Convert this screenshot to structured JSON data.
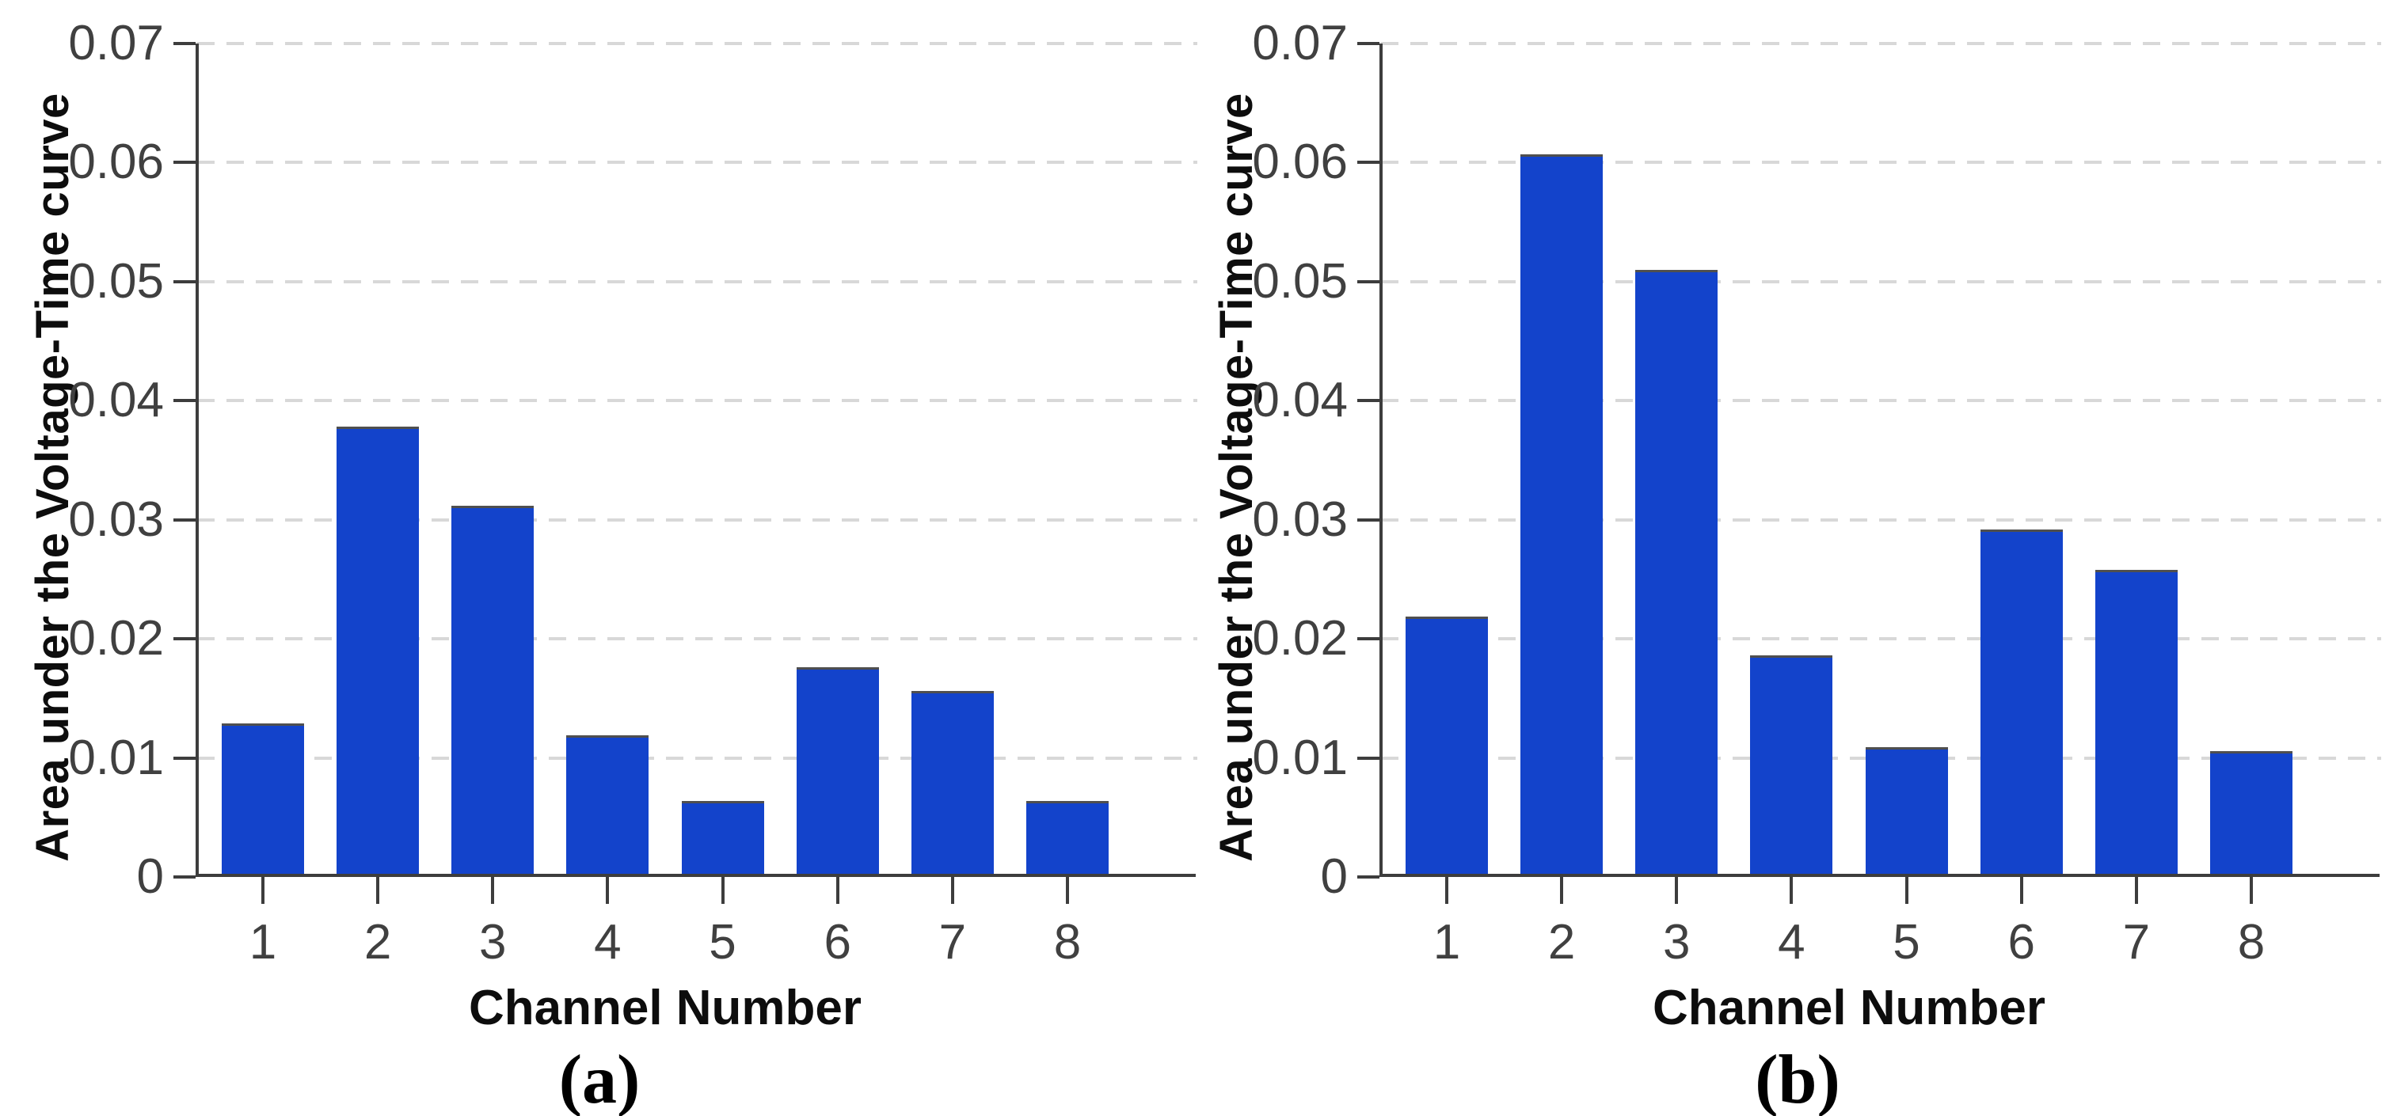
{
  "chart_data": [
    {
      "type": "bar",
      "panel_label": "(a)",
      "xlabel": "Channel Number",
      "ylabel": "Area under the Voltage-Time curve",
      "categories": [
        "1",
        "2",
        "3",
        "4",
        "5",
        "6",
        "7",
        "8"
      ],
      "values": [
        0.0127,
        0.0376,
        0.031,
        0.0117,
        0.0062,
        0.0174,
        0.0154,
        0.0062
      ],
      "ylim": [
        0,
        0.07
      ],
      "yticks": [
        0,
        0.01,
        0.02,
        0.03,
        0.04,
        0.05,
        0.06,
        0.07
      ],
      "ytick_labels": [
        "0",
        "0.01",
        "0.02",
        "0.03",
        "0.04",
        "0.05",
        "0.06",
        "0.07"
      ],
      "grid": "horizontal-dashed",
      "legend": "none"
    },
    {
      "type": "bar",
      "panel_label": "(b)",
      "xlabel": "Channel Number",
      "ylabel": "Area under the Voltage-Time curve",
      "categories": [
        "1",
        "2",
        "3",
        "4",
        "5",
        "6",
        "7",
        "8"
      ],
      "values": [
        0.0217,
        0.0605,
        0.0508,
        0.0184,
        0.0107,
        0.029,
        0.0256,
        0.0104
      ],
      "ylim": [
        0,
        0.07
      ],
      "yticks": [
        0,
        0.01,
        0.02,
        0.03,
        0.04,
        0.05,
        0.06,
        0.07
      ],
      "ytick_labels": [
        "0",
        "0.01",
        "0.02",
        "0.03",
        "0.04",
        "0.05",
        "0.06",
        "0.07"
      ],
      "grid": "horizontal-dashed",
      "legend": "none"
    }
  ],
  "style": {
    "bar_color": "#1343cb",
    "bar_edge_color": "#4f4f4f",
    "axis_color": "#3d3d3d",
    "grid_color": "#d8d8d8",
    "tick_label_color": "#404040",
    "label_color": "#0d0d0d",
    "background": "#ffffff"
  }
}
